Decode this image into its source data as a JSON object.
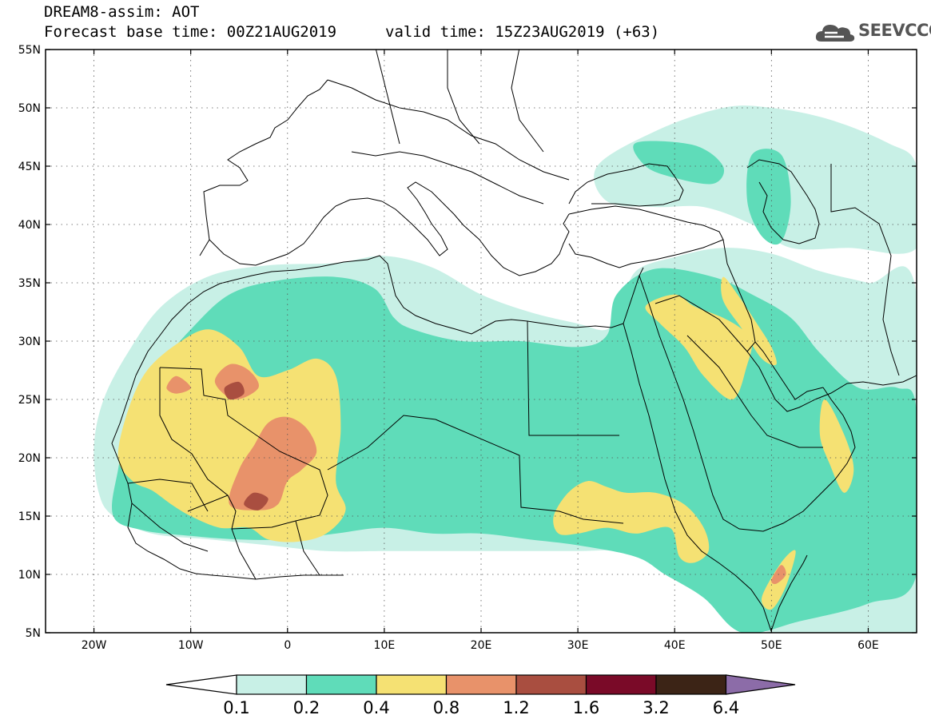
{
  "header": {
    "title": "DREAM8-assim: AOT",
    "base_time": "Forecast base time: 00Z21AUG2019",
    "valid_time": "valid time: 15Z23AUG2019 (+63)",
    "logo_text": "SEEVCCC",
    "logo_icon": "cloud-icon"
  },
  "map": {
    "lon_range": [
      -25,
      65
    ],
    "lat_range": [
      5,
      55
    ],
    "lat_ticks": [
      {
        "value": 55,
        "label": "55N"
      },
      {
        "value": 50,
        "label": "50N"
      },
      {
        "value": 45,
        "label": "45N"
      },
      {
        "value": 40,
        "label": "40N"
      },
      {
        "value": 35,
        "label": "35N"
      },
      {
        "value": 30,
        "label": "30N"
      },
      {
        "value": 25,
        "label": "25N"
      },
      {
        "value": 20,
        "label": "20N"
      },
      {
        "value": 15,
        "label": "15N"
      },
      {
        "value": 10,
        "label": "10N"
      },
      {
        "value": 5,
        "label": "5N"
      }
    ],
    "lon_ticks": [
      {
        "value": -20,
        "label": "20W"
      },
      {
        "value": -10,
        "label": "10W"
      },
      {
        "value": 0,
        "label": "0"
      },
      {
        "value": 10,
        "label": "10E"
      },
      {
        "value": 20,
        "label": "20E"
      },
      {
        "value": 30,
        "label": "30E"
      },
      {
        "value": 40,
        "label": "40E"
      },
      {
        "value": 50,
        "label": "50E"
      },
      {
        "value": 60,
        "label": "60E"
      }
    ],
    "grid": "dotted"
  },
  "colorbar": {
    "bins": [
      {
        "from": 0.1,
        "to": 0.2,
        "color": "#c8f0e6"
      },
      {
        "from": 0.2,
        "to": 0.4,
        "color": "#5fdcb9"
      },
      {
        "from": 0.4,
        "to": 0.8,
        "color": "#f5e173"
      },
      {
        "from": 0.8,
        "to": 1.2,
        "color": "#e8926a"
      },
      {
        "from": 1.2,
        "to": 1.6,
        "color": "#a94e40"
      },
      {
        "from": 1.6,
        "to": 3.2,
        "color": "#7a0a28"
      },
      {
        "from": 3.2,
        "to": 6.4,
        "color": "#3c2416"
      }
    ],
    "under_color": "#ffffff",
    "over_color": "#8c6ca8",
    "labels": [
      "0.1",
      "0.2",
      "0.4",
      "0.8",
      "1.2",
      "1.6",
      "3.2",
      "6.4"
    ]
  },
  "dust_regions": [
    {
      "level": 0.1,
      "name": "outer-haze-sahara",
      "lonlat": [
        [
          -19.5,
          17
        ],
        [
          -20,
          21
        ],
        [
          -19,
          25
        ],
        [
          -16.5,
          29
        ],
        [
          -13,
          33
        ],
        [
          -8,
          35.6
        ],
        [
          -2,
          36.5
        ],
        [
          5,
          36.7
        ],
        [
          10,
          37.3
        ],
        [
          15,
          36.3
        ],
        [
          20,
          34
        ],
        [
          25,
          32.5
        ],
        [
          30,
          31.5
        ],
        [
          33,
          31
        ],
        [
          34.5,
          33
        ],
        [
          36,
          36
        ],
        [
          40,
          37.2
        ],
        [
          45,
          38
        ],
        [
          50,
          37.5
        ],
        [
          55,
          36
        ],
        [
          60,
          35
        ],
        [
          65,
          34
        ],
        [
          65,
          5
        ],
        [
          50,
          5
        ],
        [
          42,
          9
        ],
        [
          40,
          11
        ],
        [
          35,
          12
        ],
        [
          30,
          12
        ],
        [
          25,
          12
        ],
        [
          20,
          12
        ],
        [
          15,
          12
        ],
        [
          10,
          12
        ],
        [
          4,
          12
        ],
        [
          -2,
          12.5
        ],
        [
          -8,
          13
        ],
        [
          -14,
          13.5
        ],
        [
          -18,
          15
        ]
      ]
    },
    {
      "level": 0.1,
      "name": "caspian-haze",
      "lonlat": [
        [
          32,
          45
        ],
        [
          38,
          48
        ],
        [
          45,
          50
        ],
        [
          50,
          50
        ],
        [
          56,
          49
        ],
        [
          62,
          47
        ],
        [
          65,
          45
        ],
        [
          65,
          38
        ],
        [
          58,
          38
        ],
        [
          52,
          38
        ],
        [
          48,
          40
        ],
        [
          43,
          41.5
        ],
        [
          38,
          41.5
        ],
        [
          33,
          42
        ]
      ]
    },
    {
      "level": 0.2,
      "name": "main-plume",
      "lonlat": [
        [
          -18,
          15
        ],
        [
          -17.5,
          19
        ],
        [
          -16,
          24
        ],
        [
          -13,
          28
        ],
        [
          -10,
          31
        ],
        [
          -6,
          34
        ],
        [
          -1,
          35.2
        ],
        [
          5,
          35.5
        ],
        [
          9,
          34.5
        ],
        [
          11,
          32
        ],
        [
          13,
          31
        ],
        [
          18,
          30
        ],
        [
          24,
          30
        ],
        [
          30,
          29.5
        ],
        [
          33,
          30.5
        ],
        [
          34,
          34
        ],
        [
          38,
          36.2
        ],
        [
          44,
          35.5
        ],
        [
          48,
          34
        ],
        [
          52,
          32
        ],
        [
          55,
          29
        ],
        [
          59,
          26
        ],
        [
          63,
          26
        ],
        [
          65,
          24
        ],
        [
          65,
          10
        ],
        [
          60,
          7.5
        ],
        [
          53,
          6
        ],
        [
          47,
          5
        ],
        [
          43,
          8
        ],
        [
          39,
          10
        ],
        [
          36,
          11.5
        ],
        [
          30,
          12.5
        ],
        [
          25,
          13
        ],
        [
          20,
          13.5
        ],
        [
          15,
          13.5
        ],
        [
          10,
          14
        ],
        [
          5,
          13.5
        ],
        [
          0,
          13
        ],
        [
          -5,
          13
        ],
        [
          -10,
          13.3
        ],
        [
          -15,
          13.8
        ]
      ]
    },
    {
      "level": 0.2,
      "name": "black-sea-green",
      "lonlat": [
        [
          36,
          47
        ],
        [
          42,
          46.8
        ],
        [
          45,
          45
        ],
        [
          44,
          43.5
        ],
        [
          40,
          44
        ],
        [
          37,
          45
        ]
      ]
    },
    {
      "level": 0.2,
      "name": "caspian-green",
      "lonlat": [
        [
          48,
          46
        ],
        [
          51,
          46
        ],
        [
          52,
          42
        ],
        [
          51,
          38.5
        ],
        [
          49,
          39
        ],
        [
          47.5,
          42
        ]
      ]
    },
    {
      "level": 0.4,
      "name": "west-sahara-yellow",
      "lonlat": [
        [
          -17.5,
          20
        ],
        [
          -16.5,
          24
        ],
        [
          -14.5,
          27.5
        ],
        [
          -11,
          30
        ],
        [
          -8,
          31
        ],
        [
          -5,
          29.5
        ],
        [
          -3,
          27
        ],
        [
          0,
          27.5
        ],
        [
          3,
          28.5
        ],
        [
          5,
          27
        ],
        [
          5.5,
          22.5
        ],
        [
          5,
          18
        ],
        [
          6,
          15.5
        ],
        [
          4,
          13.5
        ],
        [
          1,
          12.8
        ],
        [
          -2,
          13
        ],
        [
          -4,
          14
        ],
        [
          -7,
          14
        ],
        [
          -10,
          15
        ],
        [
          -12,
          16
        ],
        [
          -14,
          17.2
        ],
        [
          -16,
          18
        ]
      ]
    },
    {
      "level": 0.4,
      "name": "sudan-yellow",
      "lonlat": [
        [
          27.5,
          15
        ],
        [
          29,
          17
        ],
        [
          31,
          18
        ],
        [
          33,
          17.5
        ],
        [
          35,
          17
        ],
        [
          38,
          17
        ],
        [
          41,
          16
        ],
        [
          43,
          14
        ],
        [
          43.5,
          12
        ],
        [
          42,
          11
        ],
        [
          40.5,
          11.5
        ],
        [
          39.5,
          14
        ],
        [
          36,
          13.5
        ],
        [
          33,
          14
        ],
        [
          30,
          13.5
        ],
        [
          28,
          13.5
        ]
      ]
    },
    {
      "level": 0.4,
      "name": "iraq-yellow",
      "lonlat": [
        [
          37,
          33
        ],
        [
          40,
          34
        ],
        [
          42,
          33
        ],
        [
          45,
          32
        ],
        [
          47,
          31
        ],
        [
          48,
          30
        ],
        [
          47.5,
          28
        ],
        [
          46,
          25
        ],
        [
          43,
          27
        ],
        [
          41,
          29.5
        ],
        [
          38.5,
          31.5
        ]
      ]
    },
    {
      "level": 0.4,
      "name": "zagros-yellow",
      "lonlat": [
        [
          45,
          35.5
        ],
        [
          46.5,
          34
        ],
        [
          48.5,
          31.5
        ],
        [
          50,
          29.5
        ],
        [
          50.5,
          28
        ],
        [
          49,
          28.5
        ],
        [
          47,
          31
        ],
        [
          45,
          33.5
        ]
      ]
    },
    {
      "level": 0.4,
      "name": "oman-yellow",
      "lonlat": [
        [
          55.5,
          25
        ],
        [
          57.5,
          22
        ],
        [
          58.5,
          19
        ],
        [
          57.5,
          17
        ],
        [
          56,
          19.5
        ],
        [
          55,
          22
        ]
      ]
    },
    {
      "level": 0.4,
      "name": "somalia-yellow",
      "lonlat": [
        [
          49,
          8
        ],
        [
          51,
          11
        ],
        [
          52.5,
          12
        ],
        [
          51.5,
          9
        ],
        [
          50,
          7
        ]
      ]
    },
    {
      "level": 0.8,
      "name": "mali-orange",
      "lonlat": [
        [
          -6,
          16
        ],
        [
          -5,
          19
        ],
        [
          -3.5,
          21
        ],
        [
          -2,
          23
        ],
        [
          0,
          23.5
        ],
        [
          2,
          22.5
        ],
        [
          3,
          20.5
        ],
        [
          1.5,
          19
        ],
        [
          0,
          18
        ],
        [
          -1,
          16
        ],
        [
          -3,
          15.5
        ]
      ]
    },
    {
      "level": 0.8,
      "name": "algeria-orange-1",
      "lonlat": [
        [
          -7.5,
          26.5
        ],
        [
          -6,
          28
        ],
        [
          -4,
          27.5
        ],
        [
          -3,
          26
        ],
        [
          -5.5,
          25
        ]
      ]
    },
    {
      "level": 0.8,
      "name": "mauritania-orange",
      "lonlat": [
        [
          -12.5,
          26
        ],
        [
          -11.5,
          27
        ],
        [
          -10,
          26
        ],
        [
          -11.5,
          25.5
        ]
      ]
    },
    {
      "level": 0.8,
      "name": "somalia-orange",
      "lonlat": [
        [
          50,
          9.5
        ],
        [
          51,
          10.8
        ],
        [
          51.5,
          10
        ],
        [
          50.5,
          9.2
        ]
      ]
    },
    {
      "level": 1.2,
      "name": "mali-core",
      "lonlat": [
        [
          -4.5,
          16
        ],
        [
          -3.5,
          17
        ],
        [
          -2,
          16.5
        ],
        [
          -3,
          15.5
        ]
      ]
    },
    {
      "level": 1.2,
      "name": "algeria-core",
      "lonlat": [
        [
          -6.5,
          26
        ],
        [
          -5,
          26.5
        ],
        [
          -4.5,
          25.5
        ],
        [
          -6,
          25
        ]
      ]
    }
  ]
}
